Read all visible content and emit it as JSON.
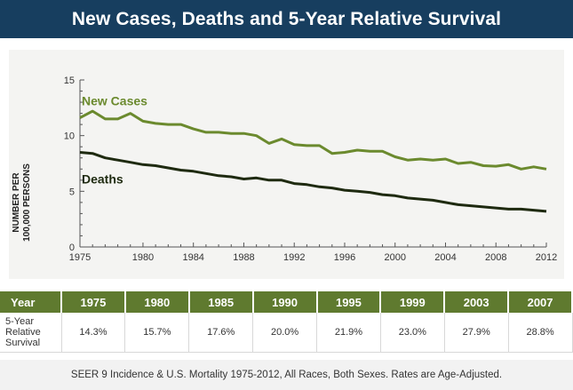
{
  "header": {
    "title": "New Cases, Deaths and 5-Year Relative Survival"
  },
  "chart_data": {
    "type": "line",
    "ylabel_line1": "NUMBER PER",
    "ylabel_line2": "100,000 PERSONS",
    "ylim": [
      0,
      15
    ],
    "xlim": [
      1975,
      2012
    ],
    "yticks": [
      0,
      5,
      10,
      15
    ],
    "xticks": [
      1975,
      1980,
      1984,
      1988,
      1992,
      1996,
      2000,
      2004,
      2008,
      2012
    ],
    "grid": false,
    "series": [
      {
        "name": "New Cases",
        "color": "#6b8a2e",
        "x": [
          1975,
          1976,
          1977,
          1978,
          1979,
          1980,
          1981,
          1982,
          1983,
          1984,
          1985,
          1986,
          1987,
          1988,
          1989,
          1990,
          1991,
          1992,
          1993,
          1994,
          1995,
          1996,
          1997,
          1998,
          1999,
          2000,
          2001,
          2002,
          2003,
          2004,
          2005,
          2006,
          2007,
          2008,
          2009,
          2010,
          2011,
          2012
        ],
        "values": [
          11.6,
          12.2,
          11.5,
          11.5,
          12.0,
          11.3,
          11.1,
          11.0,
          11.0,
          10.6,
          10.3,
          10.3,
          10.2,
          10.2,
          10.0,
          9.3,
          9.7,
          9.2,
          9.1,
          9.1,
          8.4,
          8.5,
          8.7,
          8.6,
          8.6,
          8.1,
          7.8,
          7.9,
          7.8,
          7.9,
          7.5,
          7.6,
          7.3,
          7.25,
          7.4,
          7.0,
          7.2,
          7.0
        ]
      },
      {
        "name": "Deaths",
        "color": "#1e2a10",
        "x": [
          1975,
          1976,
          1977,
          1978,
          1979,
          1980,
          1981,
          1982,
          1983,
          1984,
          1985,
          1986,
          1987,
          1988,
          1989,
          1990,
          1991,
          1992,
          1993,
          1994,
          1995,
          1996,
          1997,
          1998,
          1999,
          2000,
          2001,
          2002,
          2003,
          2004,
          2005,
          2006,
          2007,
          2008,
          2009,
          2010,
          2011,
          2012
        ],
        "values": [
          8.5,
          8.4,
          8.0,
          7.8,
          7.6,
          7.4,
          7.3,
          7.1,
          6.9,
          6.8,
          6.6,
          6.4,
          6.3,
          6.1,
          6.2,
          6.0,
          6.0,
          5.7,
          5.6,
          5.4,
          5.3,
          5.1,
          5.0,
          4.9,
          4.7,
          4.6,
          4.4,
          4.3,
          4.2,
          4.0,
          3.8,
          3.7,
          3.6,
          3.5,
          3.4,
          3.4,
          3.3,
          3.2
        ]
      }
    ]
  },
  "survival_table": {
    "header_label": "Year",
    "years": [
      "1975",
      "1980",
      "1985",
      "1990",
      "1995",
      "1999",
      "2003",
      "2007"
    ],
    "row_label_lines": [
      "5-Year",
      "Relative",
      "Survival"
    ],
    "values": [
      "14.3%",
      "15.7%",
      "17.6%",
      "20.0%",
      "21.9%",
      "23.0%",
      "27.9%",
      "28.8%"
    ]
  },
  "footnote": "SEER 9 Incidence & U.S. Mortality 1975-2012, All Races, Both Sexes. Rates are Age-Adjusted."
}
